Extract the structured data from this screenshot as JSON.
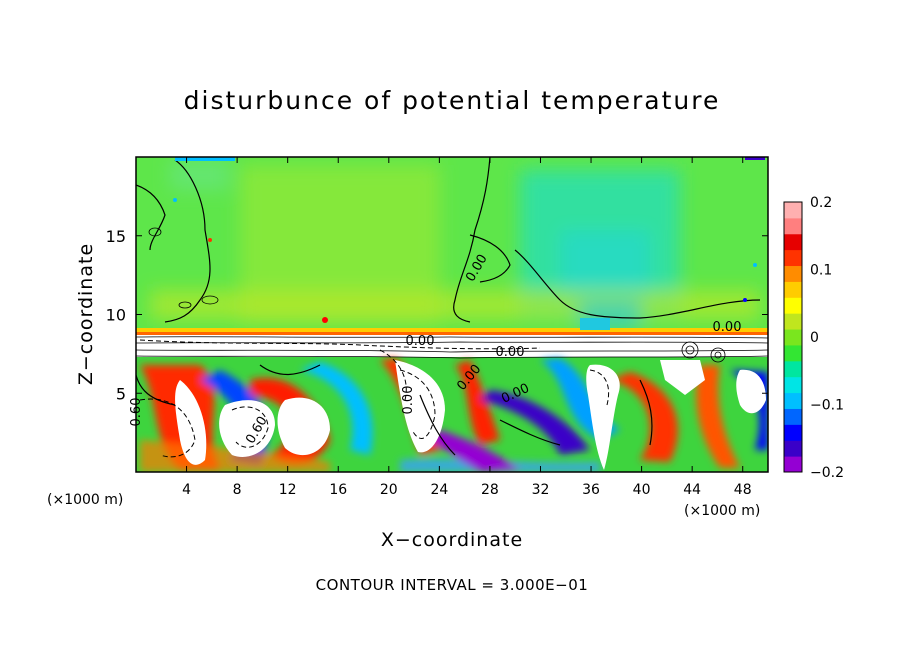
{
  "chart_data": {
    "type": "heatmap",
    "title": "disturbunce of potential temperature",
    "xlabel": "X−coordinate",
    "ylabel": "Z−coordinate",
    "x_unit_left": "(×1000 m)",
    "x_unit_right": "(×1000 m)",
    "x_ticks": [
      "4",
      "8",
      "12",
      "16",
      "20",
      "24",
      "28",
      "32",
      "36",
      "40",
      "44",
      "48"
    ],
    "x_tick_values": [
      4,
      8,
      12,
      16,
      20,
      24,
      28,
      32,
      36,
      40,
      44,
      48
    ],
    "y_ticks": [
      "5",
      "10",
      "15"
    ],
    "y_tick_values": [
      5,
      10,
      15
    ],
    "xlim": [
      0,
      50
    ],
    "ylim": [
      0,
      20
    ],
    "colorbar": {
      "ticks": [
        "0.2",
        "0.1",
        "0",
        "−0.1",
        "−0.2"
      ],
      "tick_values": [
        0.2,
        0.1,
        0,
        -0.1,
        -0.2
      ],
      "range": [
        -0.2,
        0.2
      ],
      "colors": [
        "#9400d3",
        "#3a00c8",
        "#0000ff",
        "#0066ff",
        "#00bfff",
        "#00e5e5",
        "#00e6a0",
        "#33e633",
        "#7ae61e",
        "#c0e61e",
        "#ffff00",
        "#ffcc00",
        "#ff8c00",
        "#ff3300",
        "#e60000",
        "#ff7f7f",
        "#ffb0b0"
      ]
    },
    "contour_labels": [
      "0.00",
      "0.00",
      "0.00",
      "0.00",
      "0.00",
      "0.60",
      "0.60",
      "0.00",
      "0.00"
    ],
    "contour_interval_text": "CONTOUR INTERVAL = 3.000E−01",
    "grid": false
  }
}
